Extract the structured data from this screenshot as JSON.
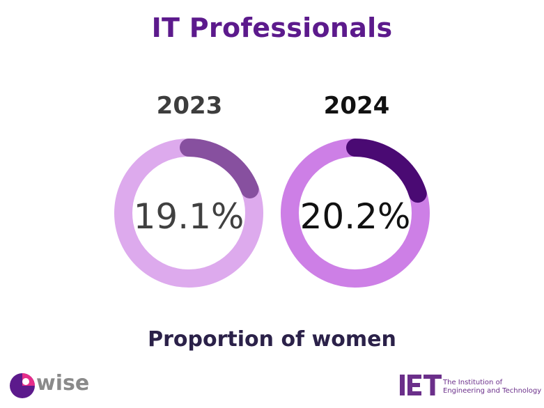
{
  "chart_data": {
    "type": "donut",
    "title": "IT Professionals",
    "subtitle": "Proportion of women",
    "items": [
      {
        "year": "2023",
        "value": 19.1,
        "label": "19.1%",
        "track_color": "#ddaaed",
        "arc_color": "#87509f",
        "year_color": "#3d3d3d",
        "text_color": "#404040"
      },
      {
        "year": "2024",
        "value": 20.2,
        "label": "20.2%",
        "track_color": "#cd7fe6",
        "arc_color": "#4a0a73",
        "year_color": "#111111",
        "text_color": "#111111"
      }
    ]
  },
  "logos": {
    "wise": {
      "text": "wise",
      "icon": "wise-logo-icon"
    },
    "iet": {
      "mark": "IET",
      "caption_line1": "The Institution of",
      "caption_line2": "Engineering and Technology"
    }
  },
  "colors": {
    "title": "#5c1a8c",
    "subtitle": "#2b2149",
    "iet": "#6b2f8a",
    "wise_pink": "#e62e8a",
    "wise_purple": "#5c1a8c"
  }
}
